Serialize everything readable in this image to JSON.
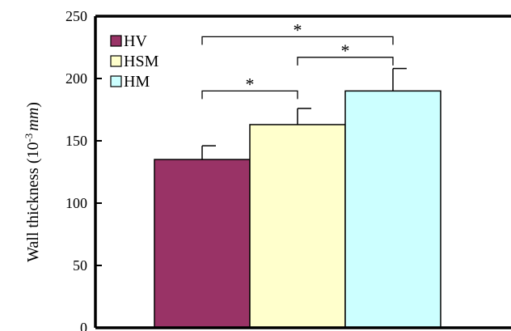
{
  "chart_data": {
    "type": "bar",
    "title": "",
    "ylabel": "Wall thickness (10",
    "ylabel_exponent": "-3",
    "ylabel_unit": "mm",
    "ylabel_close": ")",
    "ylim": [
      0,
      250
    ],
    "yticks": [
      "0",
      "50",
      "100",
      "150",
      "200",
      "250"
    ],
    "grid": false,
    "legend_position": "top-left",
    "series": [
      {
        "name": "HV",
        "value": 135,
        "error": 11,
        "color": "#993366"
      },
      {
        "name": "HSM",
        "value": 163,
        "error": 13,
        "color": "#ffffcc"
      },
      {
        "name": "HM",
        "value": 190,
        "error": 18,
        "color": "#ccffff"
      }
    ],
    "significance": [
      {
        "from": 0,
        "to": 1,
        "label": "*"
      },
      {
        "from": 1,
        "to": 2,
        "label": "*"
      },
      {
        "from": 0,
        "to": 2,
        "label": "*"
      }
    ]
  }
}
